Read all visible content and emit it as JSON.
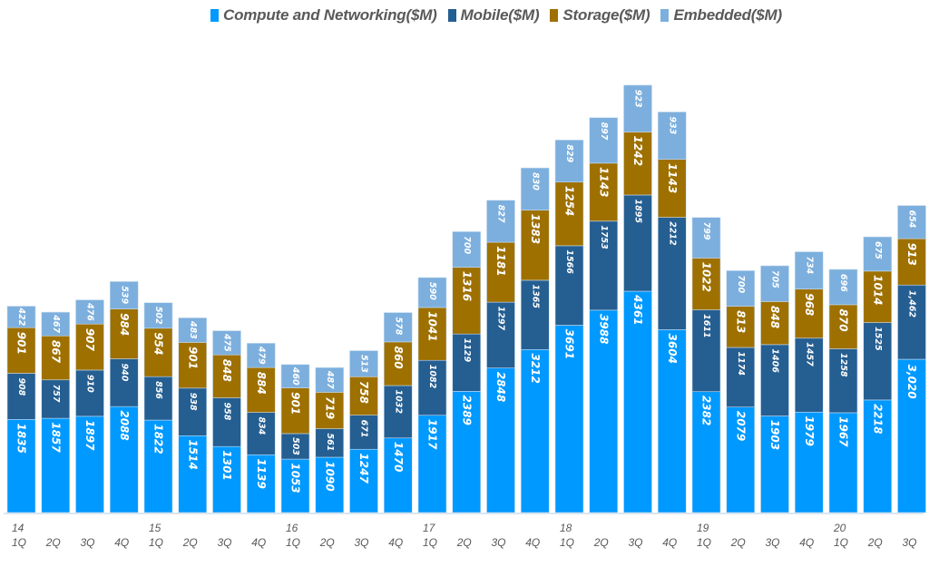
{
  "chart_data": {
    "type": "bar",
    "stacked": true,
    "title": "",
    "xlabel": "",
    "ylabel": "",
    "grid": false,
    "legend_position": "top",
    "year_labels": [
      "14",
      "15",
      "16",
      "17",
      "18",
      "19",
      "20"
    ],
    "categories": [
      "1Q",
      "2Q",
      "3Q",
      "4Q",
      "1Q",
      "2Q",
      "3Q",
      "4Q",
      "1Q",
      "2Q",
      "3Q",
      "4Q",
      "1Q",
      "2Q",
      "3Q",
      "4Q",
      "1Q",
      "2Q",
      "3Q",
      "4Q",
      "1Q",
      "2Q",
      "3Q",
      "4Q",
      "1Q",
      "2Q",
      "3Q"
    ],
    "periods": [
      "14 1Q",
      "14 2Q",
      "14 3Q",
      "14 4Q",
      "15 1Q",
      "15 2Q",
      "15 3Q",
      "15 4Q",
      "16 1Q",
      "16 2Q",
      "16 3Q",
      "16 4Q",
      "17 1Q",
      "17 2Q",
      "17 3Q",
      "17 4Q",
      "18 1Q",
      "18 2Q",
      "18 3Q",
      "18 4Q",
      "19 1Q",
      "19 2Q",
      "19 3Q",
      "19 4Q",
      "20 1Q",
      "20 2Q",
      "20 3Q"
    ],
    "series": [
      {
        "name": "Compute and Networking($M)",
        "color": "#0099FF",
        "values": [
          1835,
          1857,
          1897,
          2088,
          1822,
          1514,
          1301,
          1139,
          1053,
          1090,
          1247,
          1470,
          1917,
          2389,
          2848,
          3212,
          3691,
          3988,
          4361,
          3604,
          2382,
          2079,
          1903,
          1979,
          1967,
          2218,
          3020
        ],
        "labels": [
          "1835",
          "1857",
          "1897",
          "2088",
          "1822",
          "1514",
          "1301",
          "1139",
          "1053",
          "1090",
          "1247",
          "1470",
          "1917",
          "2389",
          "2848",
          "3212",
          "3691",
          "3988",
          "4361",
          "3604",
          "2382",
          "2079",
          "1903",
          "1979",
          "1967",
          "2218",
          "3,020"
        ]
      },
      {
        "name": "Mobile($M)",
        "color": "#255E91",
        "values": [
          908,
          757,
          910,
          940,
          856,
          938,
          958,
          834,
          503,
          561,
          671,
          1032,
          1082,
          1129,
          1297,
          1365,
          1566,
          1753,
          1895,
          2212,
          1611,
          1174,
          1406,
          1457,
          1258,
          1525,
          1462
        ],
        "labels": [
          "908",
          "757",
          "910",
          "940",
          "856",
          "938",
          "958",
          "834",
          "503",
          "561",
          "671",
          "1032",
          "1082",
          "1129",
          "1297",
          "1365",
          "1566",
          "1753",
          "1895",
          "2212",
          "1611",
          "1174",
          "1406",
          "1457",
          "1258",
          "1525",
          "1,462"
        ]
      },
      {
        "name": "Storage($M)",
        "color": "#9E7000",
        "values": [
          901,
          867,
          907,
          984,
          954,
          901,
          848,
          884,
          901,
          719,
          758,
          860,
          1041,
          1316,
          1181,
          1383,
          1254,
          1143,
          1242,
          1143,
          1022,
          813,
          848,
          968,
          870,
          1014,
          913
        ],
        "labels": [
          "901",
          "867",
          "907",
          "984",
          "954",
          "901",
          "848",
          "884",
          "901",
          "719",
          "758",
          "860",
          "1041",
          "1316",
          "1181",
          "1383",
          "1254",
          "1143",
          "1242",
          "1143",
          "1022",
          "813",
          "848",
          "968",
          "870",
          "1014",
          "913"
        ]
      },
      {
        "name": "Embedded($M)",
        "color": "#7CAFDD",
        "values": [
          422,
          467,
          476,
          539,
          502,
          483,
          475,
          479,
          460,
          487,
          513,
          578,
          590,
          700,
          827,
          830,
          829,
          897,
          923,
          933,
          799,
          700,
          705,
          734,
          696,
          675,
          654
        ],
        "labels": [
          "422",
          "467",
          "476",
          "539",
          "502",
          "483",
          "475",
          "479",
          "460",
          "487",
          "513",
          "578",
          "590",
          "700",
          "827",
          "830",
          "829",
          "897",
          "923",
          "933",
          "799",
          "700",
          "705",
          "734",
          "696",
          "675",
          "654"
        ]
      }
    ],
    "ylim": [
      0,
      8500
    ]
  }
}
